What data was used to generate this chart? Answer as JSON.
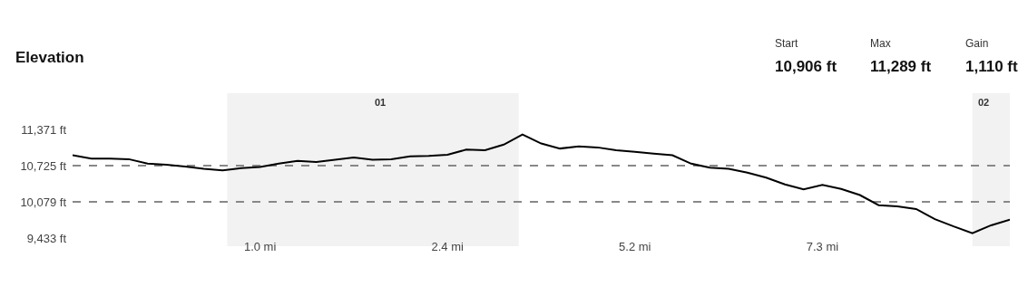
{
  "chart_data": {
    "type": "line",
    "title": "Elevation",
    "annotations": [
      "Start",
      "10,906 ft",
      "Max",
      "11,289 ft",
      "Gain",
      "1,110 ft",
      "01",
      "02"
    ],
    "categories": [
      null,
      null,
      null,
      null,
      null,
      null,
      null,
      null,
      null,
      null,
      "1.0 mi",
      null,
      null,
      null,
      null,
      null,
      null,
      null,
      null,
      null,
      "2.4 mi",
      null,
      null,
      null,
      null,
      null,
      null,
      null,
      null,
      null,
      "5.2 mi",
      null,
      null,
      null,
      null,
      null,
      null,
      null,
      null,
      null,
      "7.3 mi",
      null,
      null,
      null,
      null,
      null,
      null,
      null,
      null,
      null,
      null
    ],
    "series": [
      {
        "color": "#000000",
        "values": [
          10910,
          10850,
          10850,
          10840,
          10760,
          10740,
          10710,
          10670,
          10640,
          10680,
          10700,
          10760,
          10810,
          10790,
          10830,
          10870,
          10830,
          10840,
          10890,
          10900,
          10920,
          11010,
          11000,
          11100,
          11280,
          11120,
          11030,
          11070,
          11050,
          11000,
          10970,
          10940,
          10910,
          10760,
          10690,
          10670,
          10600,
          10510,
          10390,
          10300,
          10380,
          10310,
          10200,
          10020,
          10000,
          9950,
          9770,
          9640,
          9520,
          9660,
          9760
        ]
      }
    ],
    "ylim": [
      9433,
      11371
    ],
    "yticks": [
      {
        "value": 9433,
        "label": "9,433 ft"
      },
      {
        "value": 10079,
        "label": "10,079 ft"
      },
      {
        "value": 10725,
        "label": "10,725 ft"
      },
      {
        "value": 11371,
        "label": "11,371 ft"
      }
    ],
    "grid": "y",
    "marker": "none",
    "line_style": "solid"
  }
}
